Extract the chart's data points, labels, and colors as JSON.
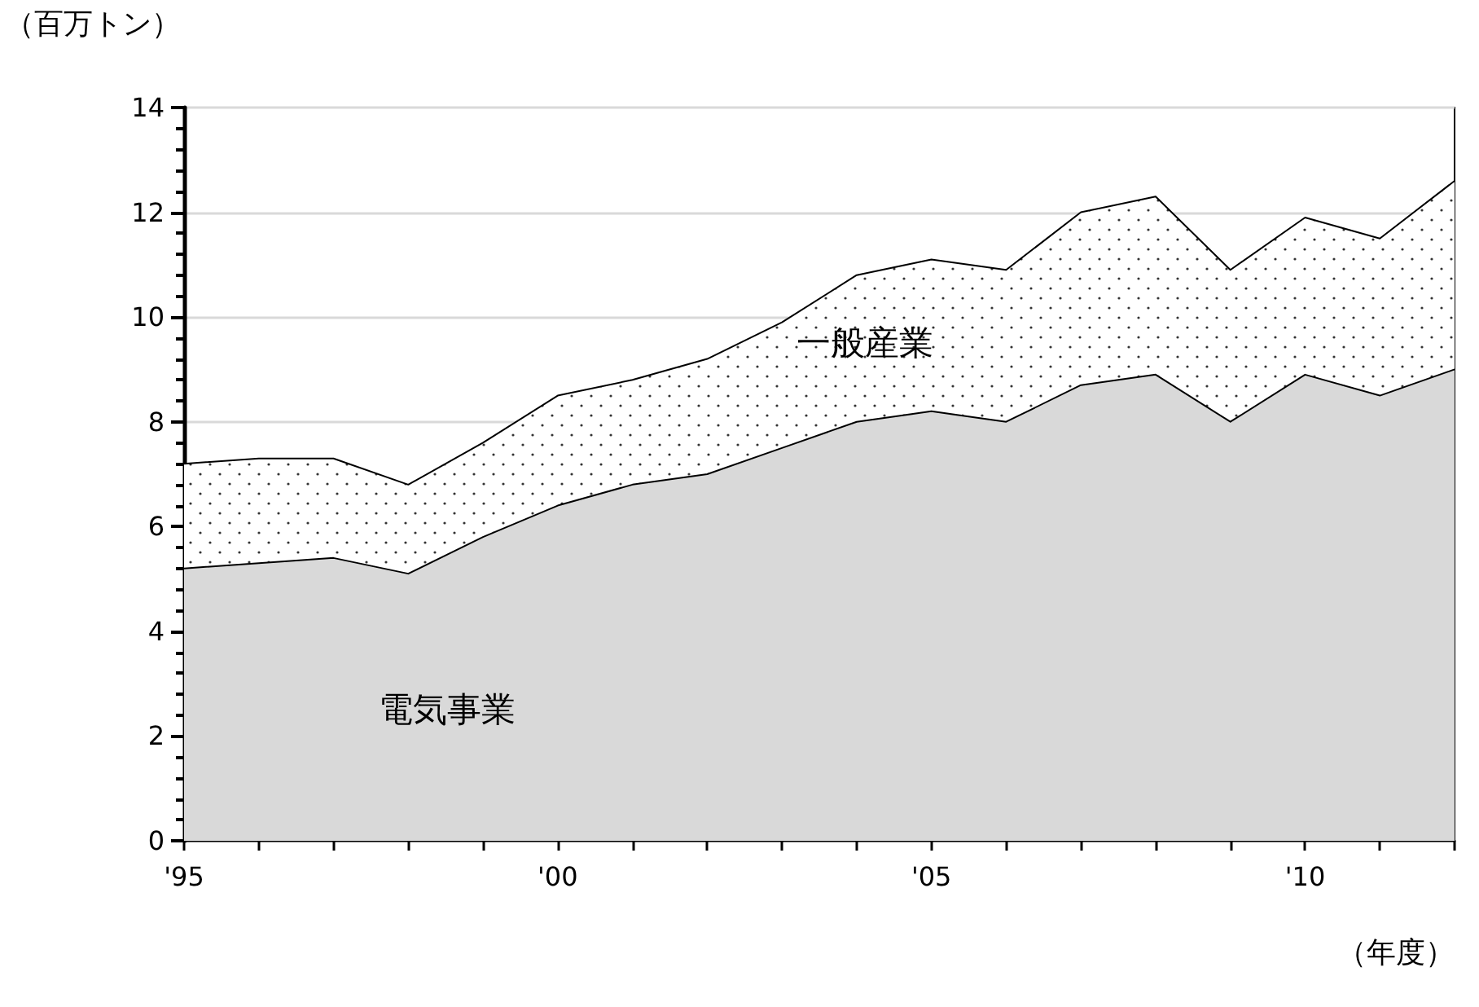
{
  "chart_data": {
    "type": "area",
    "stacked": true,
    "ylabel": "（百万トン）",
    "xlabel": "（年度）",
    "x": [
      1995,
      1996,
      1997,
      1998,
      1999,
      2000,
      2001,
      2002,
      2003,
      2004,
      2005,
      2006,
      2007,
      2008,
      2009,
      2010,
      2011,
      2012
    ],
    "series": [
      {
        "name": "電気事業",
        "color": "#d9d9d9",
        "values": [
          5.2,
          5.3,
          5.4,
          5.1,
          5.8,
          6.4,
          6.8,
          7.0,
          7.5,
          8.0,
          8.2,
          8.0,
          8.7,
          8.9,
          8.0,
          8.9,
          8.5,
          9.0
        ]
      },
      {
        "name": "一般産業",
        "color": "#ffffff",
        "values": [
          2.0,
          2.0,
          1.9,
          1.7,
          1.8,
          2.1,
          2.0,
          2.2,
          2.4,
          2.8,
          2.9,
          2.9,
          3.3,
          3.4,
          2.9,
          3.0,
          3.0,
          3.6
        ]
      }
    ],
    "xlim": [
      1995,
      2012
    ],
    "xticks": [
      {
        "value": 1995,
        "label": "'95"
      },
      {
        "value": 1996,
        "label": null
      },
      {
        "value": 1997,
        "label": null
      },
      {
        "value": 1998,
        "label": null
      },
      {
        "value": 1999,
        "label": null
      },
      {
        "value": 2000,
        "label": "'00"
      },
      {
        "value": 2001,
        "label": null
      },
      {
        "value": 2002,
        "label": null
      },
      {
        "value": 2003,
        "label": null
      },
      {
        "value": 2004,
        "label": null
      },
      {
        "value": 2005,
        "label": "'05"
      },
      {
        "value": 2006,
        "label": null
      },
      {
        "value": 2007,
        "label": null
      },
      {
        "value": 2008,
        "label": null
      },
      {
        "value": 2009,
        "label": null
      },
      {
        "value": 2010,
        "label": "'10"
      },
      {
        "value": 2011,
        "label": null
      },
      {
        "value": 2012,
        "label": null
      }
    ],
    "ylim": [
      0,
      14
    ],
    "yticks": [
      0,
      2,
      4,
      6,
      8,
      10,
      12,
      14
    ],
    "grid": "y",
    "legend": false,
    "marker": "none",
    "line_style": "solid"
  }
}
